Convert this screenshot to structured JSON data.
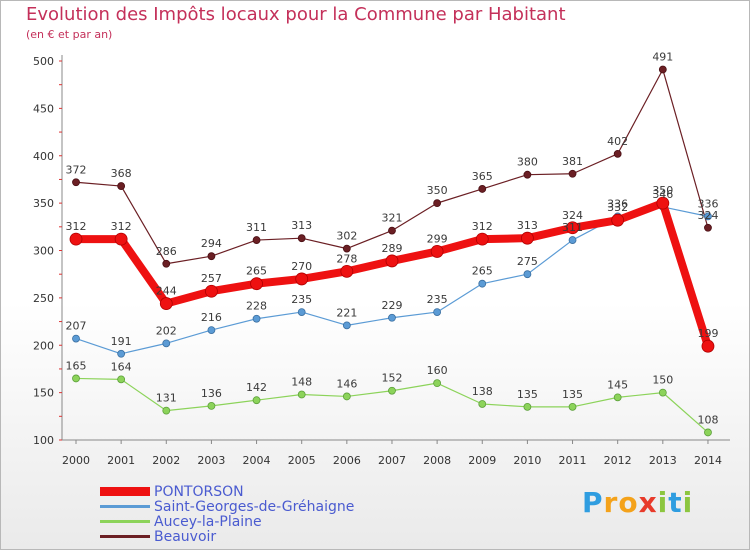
{
  "chart_data": {
    "type": "line",
    "title": "Evolution des Impôts locaux pour la Commune par Habitant",
    "subtitle": "(en € et par an)",
    "xlabel": "",
    "ylabel": "",
    "ylim": [
      100,
      500
    ],
    "yticks": [
      100,
      150,
      200,
      250,
      300,
      350,
      400,
      450,
      500
    ],
    "categories": [
      "2000",
      "2001",
      "2002",
      "2003",
      "2004",
      "2005",
      "2006",
      "2007",
      "2008",
      "2009",
      "2010",
      "2011",
      "2012",
      "2013",
      "2014"
    ],
    "grid": false,
    "legend_position": "bottom-left",
    "series": [
      {
        "name": "PONTORSON",
        "color": "#ee1111",
        "values": [
          312,
          312,
          244,
          257,
          265,
          270,
          278,
          289,
          299,
          312,
          313,
          324,
          332,
          350,
          199
        ]
      },
      {
        "name": "Saint-Georges-de-Gréhaigne",
        "color": "#5b9bd5",
        "values": [
          207,
          191,
          202,
          216,
          228,
          235,
          221,
          229,
          235,
          265,
          275,
          311,
          336,
          346,
          336
        ]
      },
      {
        "name": "Aucey-la-Plaine",
        "color": "#8cd35a",
        "values": [
          165,
          164,
          131,
          136,
          142,
          148,
          146,
          152,
          160,
          138,
          135,
          135,
          145,
          150,
          108
        ]
      },
      {
        "name": "Beauvoir",
        "color": "#6b1f24",
        "values": [
          372,
          368,
          286,
          294,
          311,
          313,
          302,
          321,
          350,
          365,
          380,
          381,
          402,
          491,
          324
        ]
      }
    ]
  },
  "logo": {
    "letters": [
      "P",
      "r",
      "o",
      "x",
      "i",
      "t",
      "i"
    ],
    "colors": [
      "#2f9de0",
      "#f4a21a",
      "#f4a21a",
      "#e83a2a",
      "#8cc63f",
      "#2f9de0",
      "#8cc63f"
    ]
  }
}
